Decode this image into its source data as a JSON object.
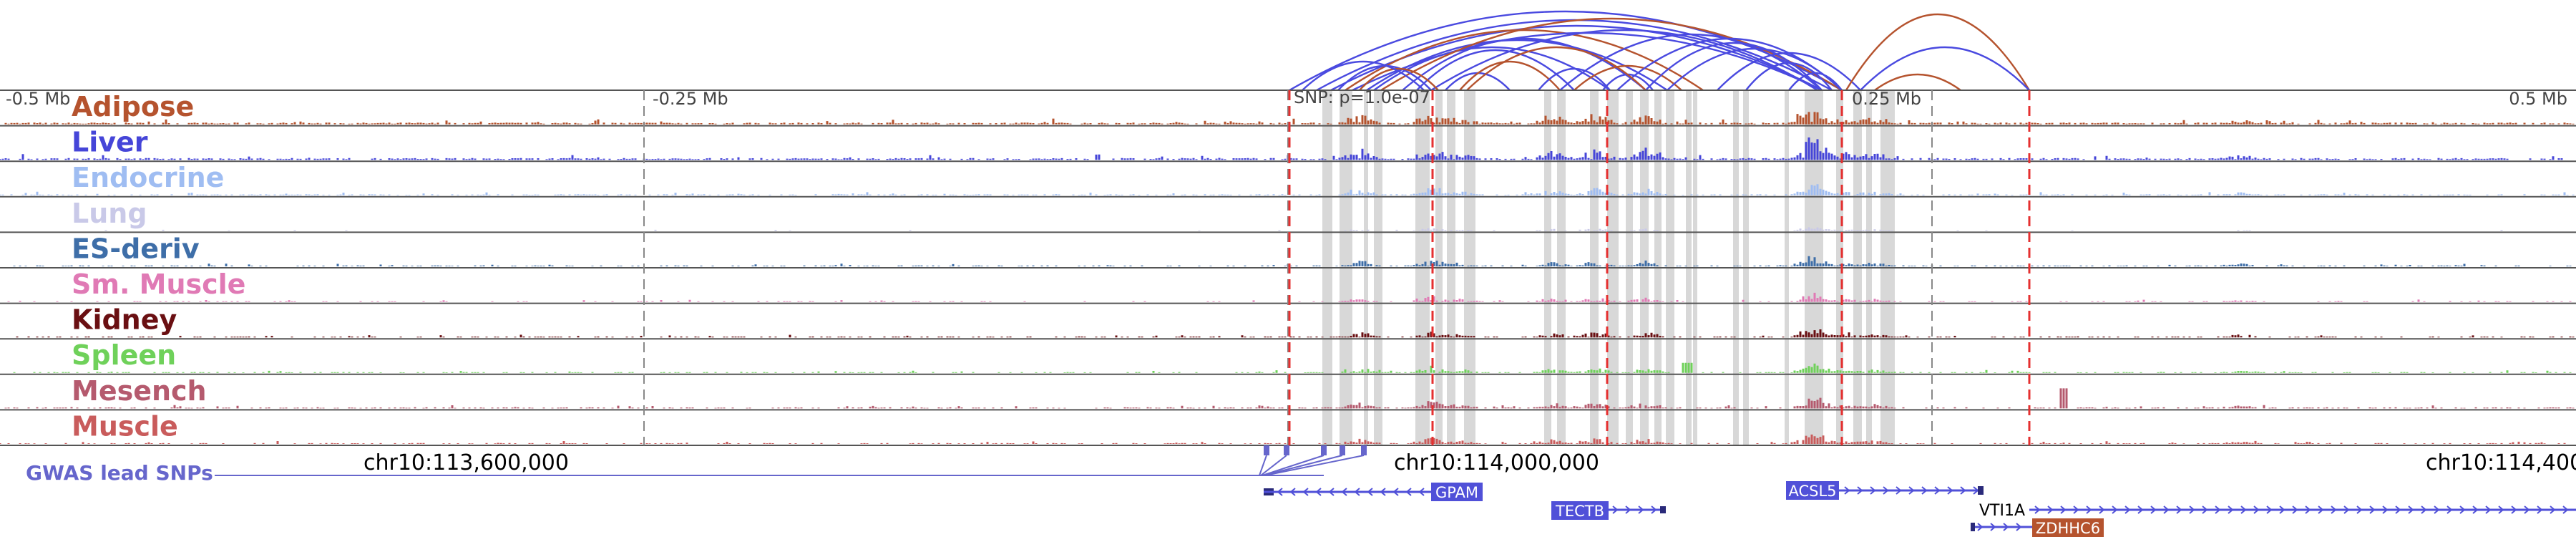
{
  "distance_labels": {
    "left": "-0.5 Mb",
    "mid_left": "-0.25 Mb",
    "mid_right": "0.25 Mb",
    "right": "0.5 Mb"
  },
  "snp_label": "SNP: p=1.0e-07",
  "tracks": [
    {
      "name": "Adipose",
      "color": "#b5532e"
    },
    {
      "name": "Liver",
      "color": "#4545d8"
    },
    {
      "name": "Endocrine",
      "color": "#9fbdf2"
    },
    {
      "name": "Lung",
      "color": "#c9c9e8"
    },
    {
      "name": "ES-deriv",
      "color": "#3e6ea8"
    },
    {
      "name": "Sm. Muscle",
      "color": "#e07ab5"
    },
    {
      "name": "Kidney",
      "color": "#6a0f12"
    },
    {
      "name": "Spleen",
      "color": "#6fd15a"
    },
    {
      "name": "Mesench",
      "color": "#b55a6e"
    },
    {
      "name": "Muscle",
      "color": "#c95c5c"
    }
  ],
  "coordinates": {
    "left": "chr10:113,600,000",
    "center": "chr10:114,000,000",
    "right": "chr10:114,400"
  },
  "gwas_label": "GWAS lead SNPs",
  "genes": [
    {
      "name": "GPAM",
      "color": "#5050d8",
      "strand": "-"
    },
    {
      "name": "TECTB",
      "color": "#5050d8",
      "strand": "+"
    },
    {
      "name": "ACSL5",
      "color": "#5050d8",
      "strand": "+"
    },
    {
      "name": "VTI1A",
      "color": "#ffffff",
      "strand": "+"
    },
    {
      "name": "ZDHHC6",
      "color": "#b5532e",
      "strand": "+"
    }
  ],
  "colors": {
    "arc_primary": "#4a4ae0",
    "arc_secondary": "#b5532e",
    "snp_line": "#e53030",
    "highlight": "#d8d8d8",
    "gwas": "#6666cc"
  }
}
